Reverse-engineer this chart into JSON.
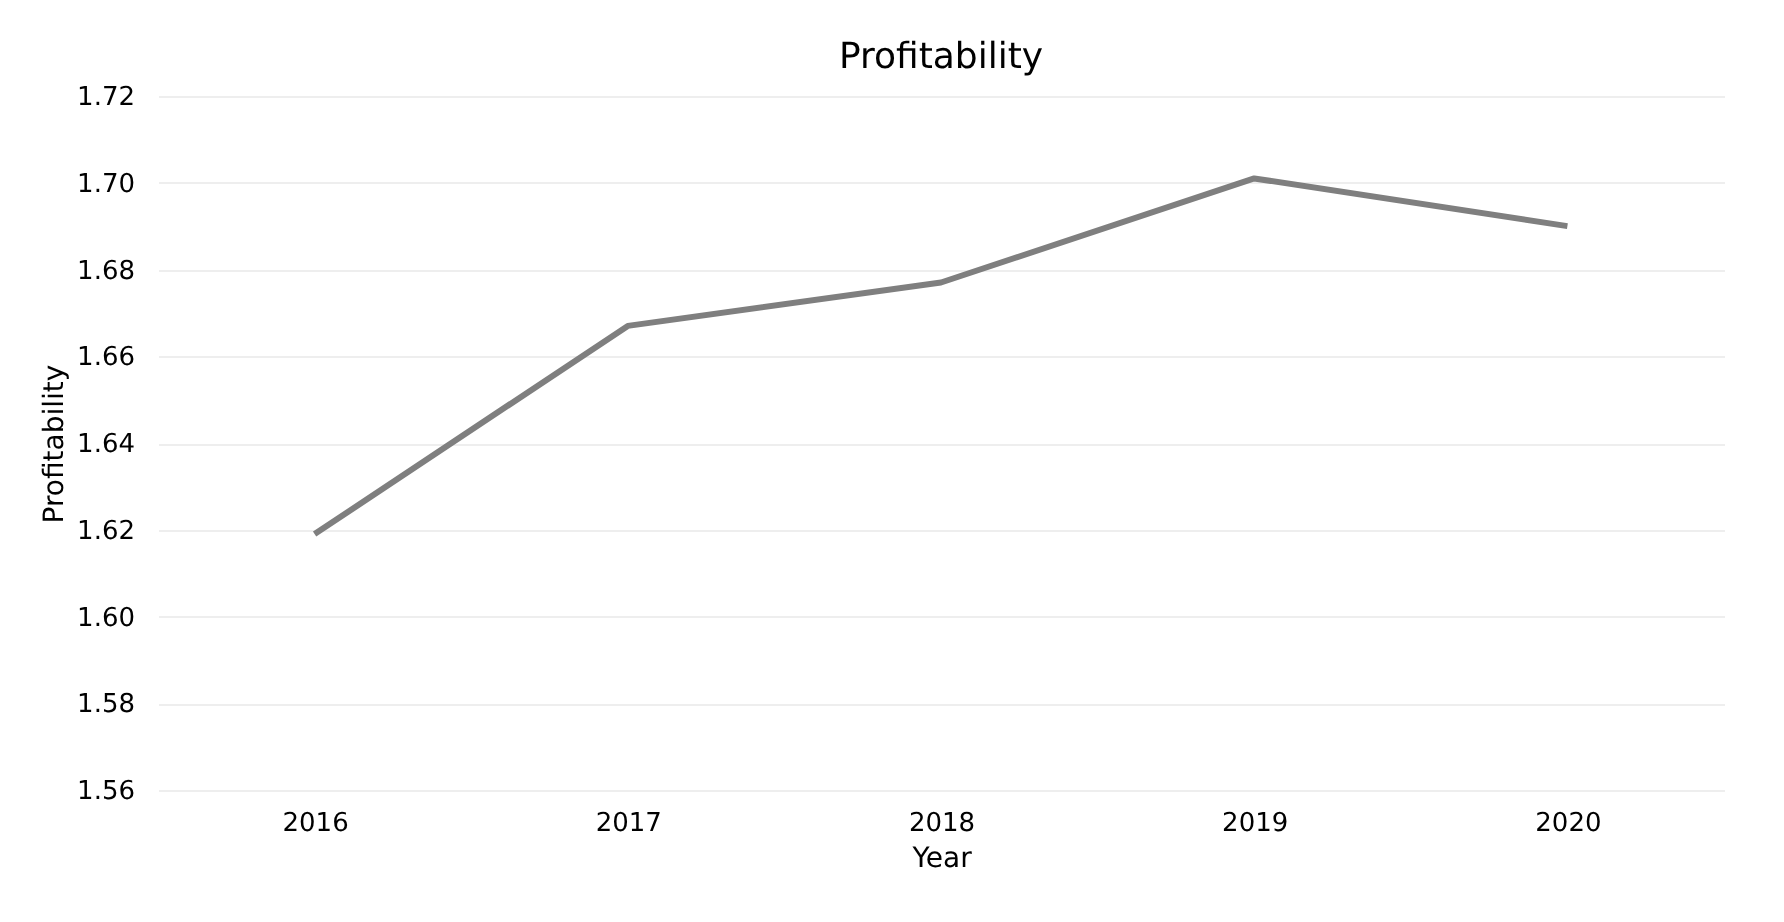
{
  "chart_data": {
    "type": "line",
    "title": "Profitability",
    "xlabel": "Year",
    "ylabel": "Profitability",
    "categories": [
      "2016",
      "2017",
      "2018",
      "2019",
      "2020"
    ],
    "series": [
      {
        "color": "#7f7f7f",
        "values": [
          1.619,
          1.667,
          1.677,
          1.701,
          1.69
        ]
      }
    ],
    "ylim": [
      1.56,
      1.72
    ],
    "yticks": [
      1.56,
      1.58,
      {
        "value": 1.6,
        "label": "1.60"
      },
      1.62,
      1.64,
      1.66,
      1.68,
      {
        "value": 1.7,
        "label": "1.70"
      },
      1.72
    ],
    "grid": "y",
    "marker": "none",
    "line_style": "solid"
  }
}
